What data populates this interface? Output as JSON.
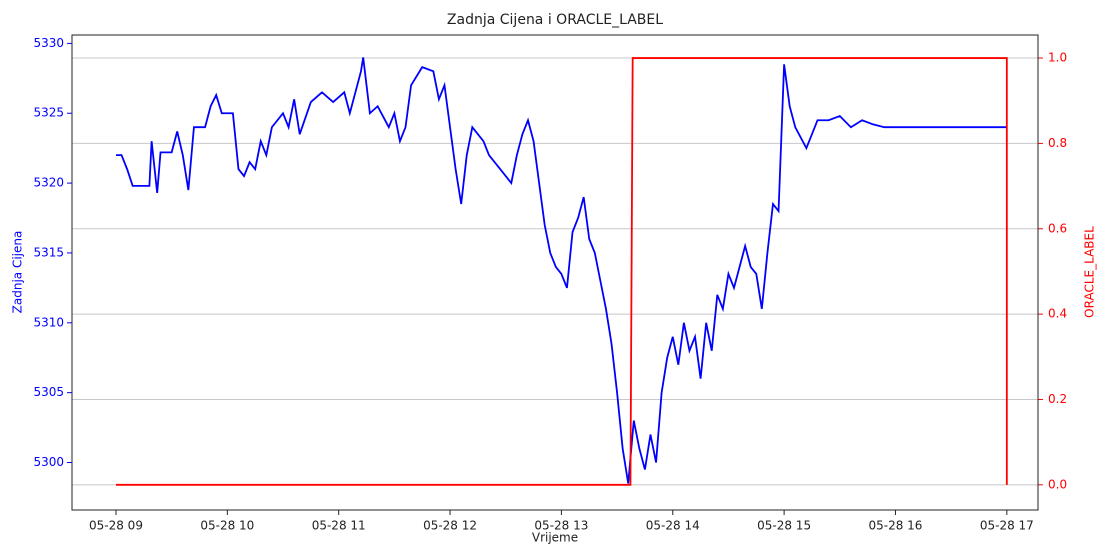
{
  "chart_data": {
    "type": "line",
    "title": "Zadnja Cijena i ORACLE_LABEL",
    "xlabel": "Vrijeme",
    "ylabel": "Zadnja Cijena",
    "y2label": "ORACLE_LABEL",
    "xlim": [
      8.605,
      17.28
    ],
    "xticks": [
      {
        "value": 9,
        "label": "05-28 09"
      },
      {
        "value": 10,
        "label": "05-28 10"
      },
      {
        "value": 11,
        "label": "05-28 11"
      },
      {
        "value": 12,
        "label": "05-28 12"
      },
      {
        "value": 13,
        "label": "05-28 13"
      },
      {
        "value": 14,
        "label": "05-28 14"
      },
      {
        "value": 15,
        "label": "05-28 15"
      },
      {
        "value": 16,
        "label": "05-28 16"
      },
      {
        "value": 17,
        "label": "05-28 17"
      }
    ],
    "ylim": [
      5296.6,
      5330.6
    ],
    "yticks": [
      5300,
      5305,
      5310,
      5315,
      5320,
      5325,
      5330
    ],
    "y2lim": [
      -0.059,
      1.054
    ],
    "y2ticks": [
      {
        "value": 0,
        "label": "0.0"
      },
      {
        "value": 0.2,
        "label": "0.2"
      },
      {
        "value": 0.4,
        "label": "0.4"
      },
      {
        "value": 0.6,
        "label": "0.6"
      },
      {
        "value": 0.8,
        "label": "0.8"
      },
      {
        "value": 1,
        "label": "1.0"
      }
    ],
    "grid": "y2",
    "series": [
      {
        "name": "Zadnja Cijena",
        "color": "#0000ff",
        "axis": "y",
        "x": [
          9.0,
          9.05,
          9.1,
          9.15,
          9.3,
          9.32,
          9.37,
          9.4,
          9.5,
          9.55,
          9.6,
          9.65,
          9.7,
          9.8,
          9.85,
          9.9,
          9.95,
          10.05,
          10.1,
          10.15,
          10.2,
          10.25,
          10.3,
          10.35,
          10.4,
          10.5,
          10.55,
          10.6,
          10.65,
          10.75,
          10.85,
          10.95,
          11.05,
          11.1,
          11.2,
          11.22,
          11.28,
          11.35,
          11.45,
          11.5,
          11.55,
          11.6,
          11.65,
          11.75,
          11.85,
          11.9,
          11.95,
          12.0,
          12.05,
          12.1,
          12.15,
          12.2,
          12.3,
          12.35,
          12.45,
          12.55,
          12.6,
          12.65,
          12.7,
          12.75,
          12.8,
          12.85,
          12.9,
          12.95,
          13.0,
          13.05,
          13.1,
          13.15,
          13.2,
          13.25,
          13.3,
          13.35,
          13.4,
          13.45,
          13.5,
          13.55,
          13.6,
          13.65,
          13.7,
          13.75,
          13.8,
          13.85,
          13.9,
          13.95,
          14.0,
          14.05,
          14.1,
          14.15,
          14.2,
          14.25,
          14.3,
          14.35,
          14.4,
          14.45,
          14.5,
          14.55,
          14.6,
          14.65,
          14.7,
          14.75,
          14.8,
          14.85,
          14.9,
          14.95,
          15.0,
          15.05,
          15.1,
          15.2,
          15.3,
          15.4,
          15.5,
          15.6,
          15.7,
          15.8,
          15.9,
          16.0,
          16.5,
          17.0
        ],
        "values": [
          5322,
          5322,
          5321,
          5319.8,
          5319.8,
          5323,
          5319.3,
          5322.2,
          5322.2,
          5323.7,
          5322,
          5319.5,
          5324,
          5324,
          5325.5,
          5326.3,
          5325,
          5325,
          5321,
          5320.5,
          5321.5,
          5321,
          5323,
          5322,
          5324,
          5325,
          5324,
          5326,
          5323.5,
          5325.8,
          5326.5,
          5325.8,
          5326.5,
          5325,
          5328,
          5329,
          5325,
          5325.5,
          5324,
          5325,
          5323,
          5324,
          5327,
          5328.3,
          5328,
          5326,
          5327,
          5324,
          5321,
          5318.5,
          5322,
          5324,
          5323,
          5322,
          5321,
          5320,
          5322,
          5323.5,
          5324.5,
          5323,
          5320,
          5317,
          5315,
          5314,
          5313.5,
          5312.5,
          5316.5,
          5317.5,
          5319,
          5316,
          5315,
          5313,
          5311,
          5308.5,
          5305,
          5301,
          5298.5,
          5303,
          5301,
          5299.5,
          5302,
          5300,
          5305,
          5307.5,
          5309,
          5307,
          5310,
          5308,
          5309,
          5306,
          5310,
          5308,
          5312,
          5311,
          5313.5,
          5312.5,
          5314,
          5315.5,
          5314,
          5313.5,
          5311,
          5315,
          5318.5,
          5318,
          5328.5,
          5325.5,
          5324,
          5322.5,
          5324.5,
          5324.5,
          5324.8,
          5324,
          5324.5,
          5324.2,
          5324,
          5324,
          5324,
          5324
        ]
      },
      {
        "name": "ORACLE_LABEL",
        "color": "#ff0000",
        "axis": "y2",
        "x": [
          9.0,
          13.62,
          13.64,
          17.0,
          17.0
        ],
        "values": [
          0,
          0,
          1,
          1,
          0
        ]
      }
    ]
  }
}
